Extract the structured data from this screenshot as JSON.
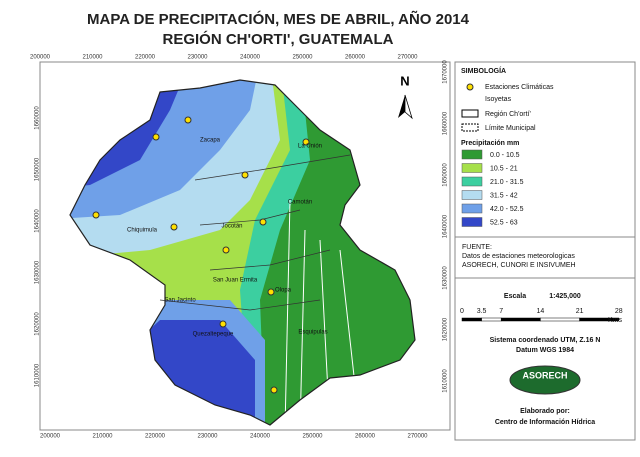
{
  "title": {
    "line1": "MAPA DE PRECIPITACIÓN, MES DE ABRIL, AÑO 2014",
    "line2": "REGIÓN CH'ORTI', GUATEMALA"
  },
  "map": {
    "top_ticks": [
      200000,
      210000,
      220000,
      230000,
      240000,
      250000,
      260000,
      270000
    ],
    "bottom_ticks": [
      200000,
      210000,
      220000,
      230000,
      240000,
      250000,
      260000,
      270000
    ],
    "left_ticks": [
      1660000,
      1650000,
      1640000,
      1630000,
      1620000,
      1610000
    ],
    "right_ticks": [
      1670000,
      1660000,
      1650000,
      1640000,
      1630000,
      1620000,
      1610000
    ],
    "north": "N",
    "places": [
      "Zacapa",
      "La Unión",
      "Camotán",
      "Jocotán",
      "Chiquimula",
      "San Juan Ermita",
      "Olopa",
      "San Jacinto",
      "Quezaltepeque",
      "Esquipulas"
    ]
  },
  "legend": {
    "title": "SIMBOLOGÍA",
    "stations": "Estaciones Climáticas",
    "isoyets": "Isoyetas",
    "region": "Región Ch'ortí'",
    "municipal": "Límite Municipal",
    "precip_title": "Precipitación mm",
    "classes": [
      {
        "label": "0.0 - 10.5",
        "color": "#2f9a33"
      },
      {
        "label": "10.5 - 21",
        "color": "#a6e04a"
      },
      {
        "label": "21.0 - 31.5",
        "color": "#3ccfa0"
      },
      {
        "label": "31.5 - 42",
        "color": "#b4dcf0"
      },
      {
        "label": "42.0 - 52.5",
        "color": "#6fa0e8"
      },
      {
        "label": "52.5 - 63",
        "color": "#3347c8"
      }
    ]
  },
  "source": {
    "title": "FUENTE:",
    "line1": "Datos de estaciones meteorologicas",
    "line2": "ASORECH, CUNORI E INSIVUMEH"
  },
  "scale": {
    "title": "Escala",
    "ratio": "1:425,000",
    "ticks": [
      0,
      3.5,
      7,
      14,
      21,
      28
    ],
    "unit": "Kms"
  },
  "coords": {
    "line1": "Sistema coordenado UTM, Z.16 N",
    "line2": "Datum WGS 1984"
  },
  "logo": "ASORECH",
  "credit": {
    "line1": "Elaborado por:",
    "line2": "Centro de Información Hídrica"
  }
}
